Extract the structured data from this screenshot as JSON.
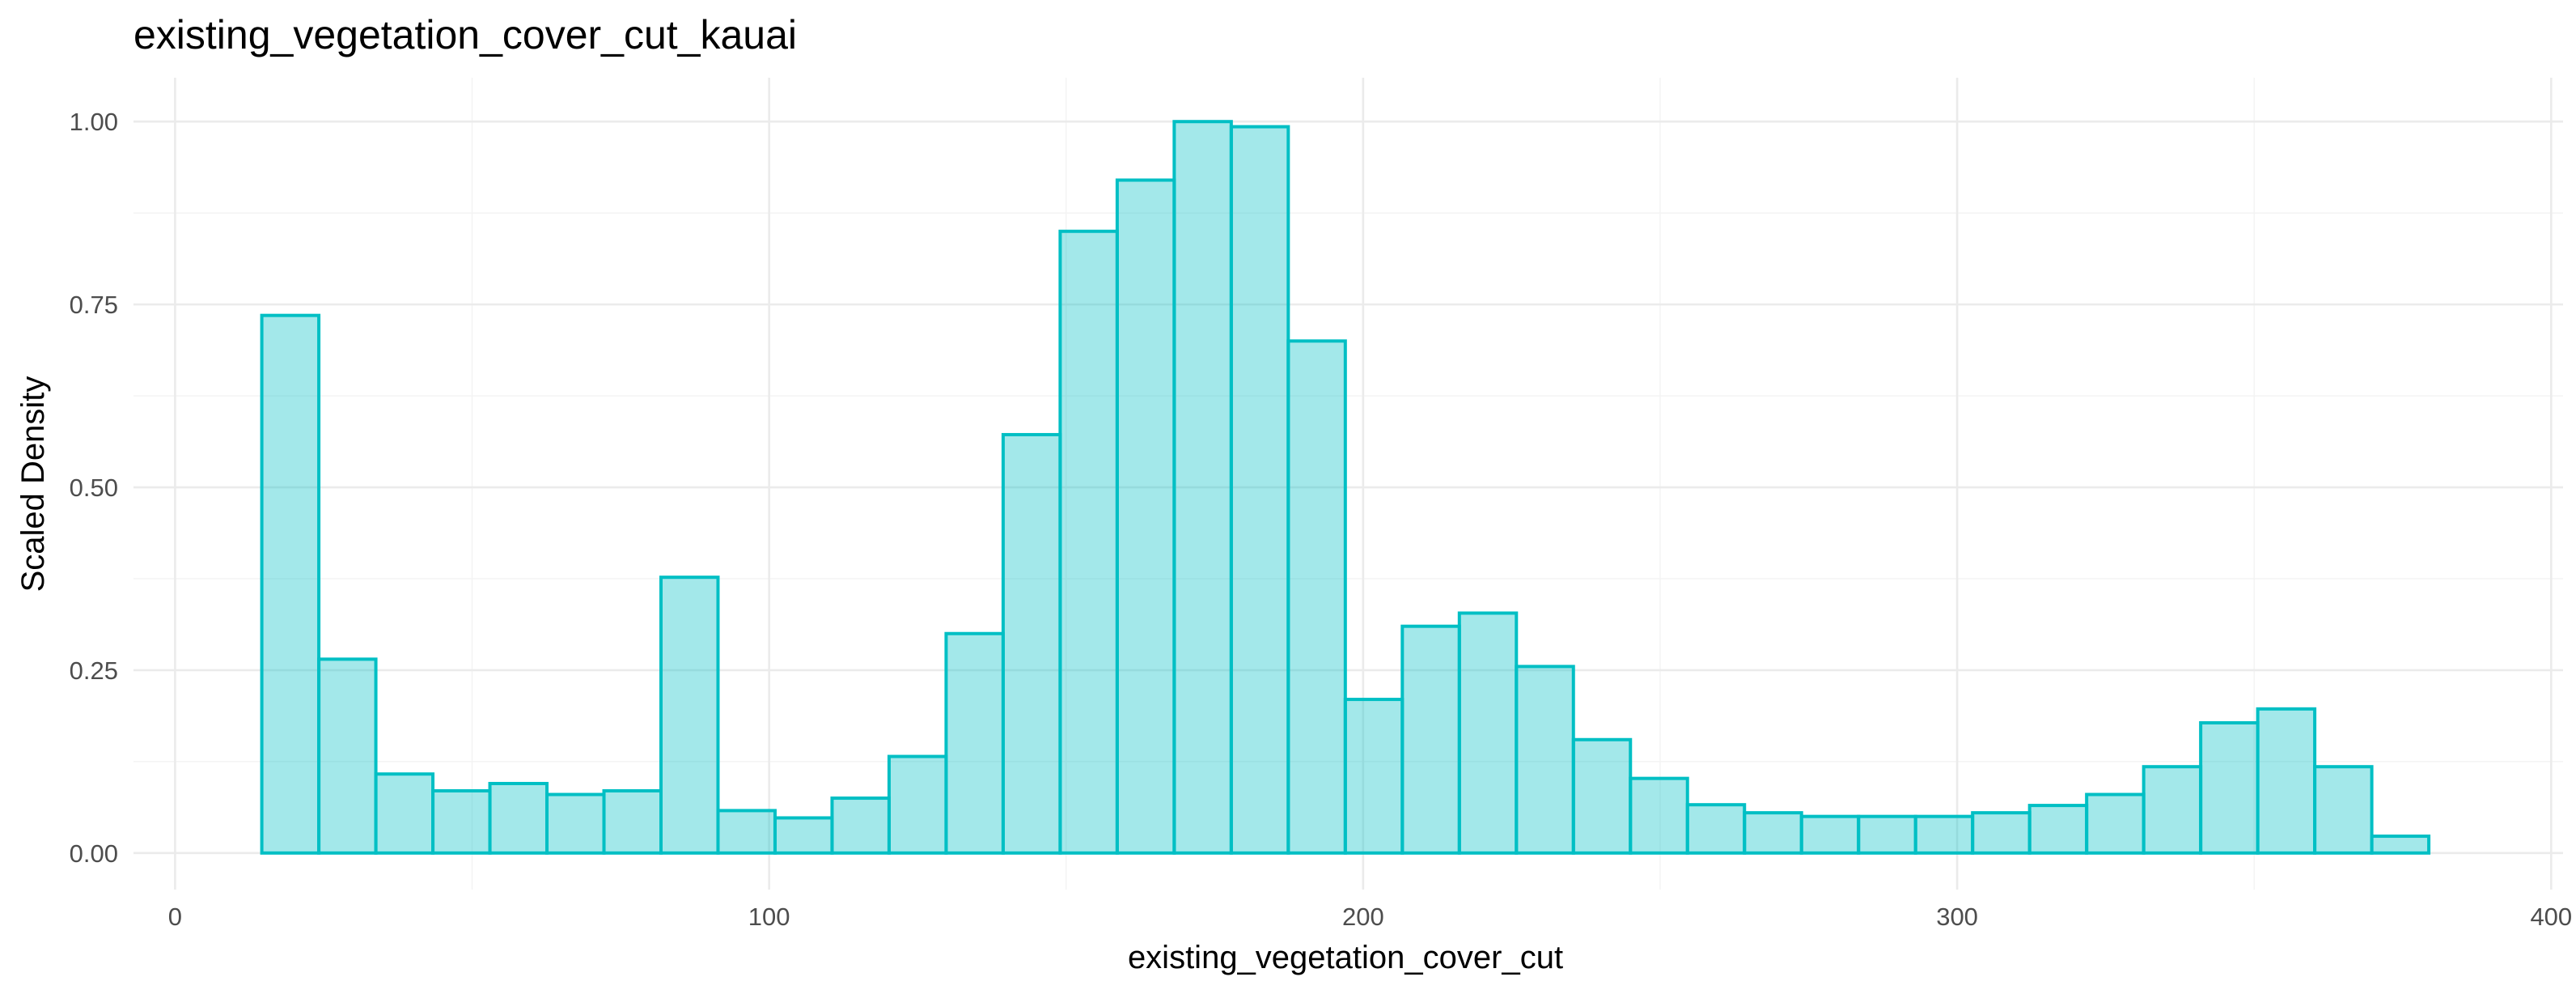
{
  "chart_data": {
    "type": "bar",
    "title": "existing_vegetation_cover_cut_kauai",
    "xlabel": "existing_vegetation_cover_cut",
    "ylabel": "Scaled Density",
    "xlim": [
      -7,
      402
    ],
    "ylim": [
      -0.05,
      1.06
    ],
    "x_ticks": [
      0,
      100,
      200,
      300,
      400
    ],
    "x_tick_labels": [
      "0",
      "100",
      "200",
      "300",
      "400"
    ],
    "y_ticks": [
      0,
      0.25,
      0.5,
      0.75,
      1.0
    ],
    "y_tick_labels": [
      "0.00",
      "0.25",
      "0.50",
      "0.75",
      "1.00"
    ],
    "grid": true,
    "bar_color": "#00bfc4",
    "bin_width": 9.6,
    "bins": [
      {
        "start": 14.6,
        "value": 0.735
      },
      {
        "start": 24.2,
        "value": 0.265
      },
      {
        "start": 33.8,
        "value": 0.108
      },
      {
        "start": 43.4,
        "value": 0.085
      },
      {
        "start": 53.0,
        "value": 0.095
      },
      {
        "start": 62.6,
        "value": 0.08
      },
      {
        "start": 72.2,
        "value": 0.085
      },
      {
        "start": 81.8,
        "value": 0.377
      },
      {
        "start": 91.4,
        "value": 0.058
      },
      {
        "start": 101.0,
        "value": 0.048
      },
      {
        "start": 110.6,
        "value": 0.075
      },
      {
        "start": 120.2,
        "value": 0.132
      },
      {
        "start": 129.8,
        "value": 0.3
      },
      {
        "start": 139.4,
        "value": 0.572
      },
      {
        "start": 149.0,
        "value": 0.85
      },
      {
        "start": 158.6,
        "value": 0.92
      },
      {
        "start": 168.2,
        "value": 1.0
      },
      {
        "start": 177.8,
        "value": 0.993
      },
      {
        "start": 187.4,
        "value": 0.7
      },
      {
        "start": 197.0,
        "value": 0.21
      },
      {
        "start": 206.6,
        "value": 0.31
      },
      {
        "start": 216.2,
        "value": 0.328
      },
      {
        "start": 225.8,
        "value": 0.255
      },
      {
        "start": 235.4,
        "value": 0.155
      },
      {
        "start": 245.0,
        "value": 0.102
      },
      {
        "start": 254.6,
        "value": 0.066
      },
      {
        "start": 264.2,
        "value": 0.055
      },
      {
        "start": 273.8,
        "value": 0.05
      },
      {
        "start": 283.4,
        "value": 0.05
      },
      {
        "start": 293.0,
        "value": 0.05
      },
      {
        "start": 302.6,
        "value": 0.055
      },
      {
        "start": 312.2,
        "value": 0.065
      },
      {
        "start": 321.8,
        "value": 0.08
      },
      {
        "start": 331.4,
        "value": 0.118
      },
      {
        "start": 341.0,
        "value": 0.178
      },
      {
        "start": 350.6,
        "value": 0.197
      },
      {
        "start": 360.2,
        "value": 0.118
      },
      {
        "start": 369.8,
        "value": 0.023
      }
    ]
  }
}
